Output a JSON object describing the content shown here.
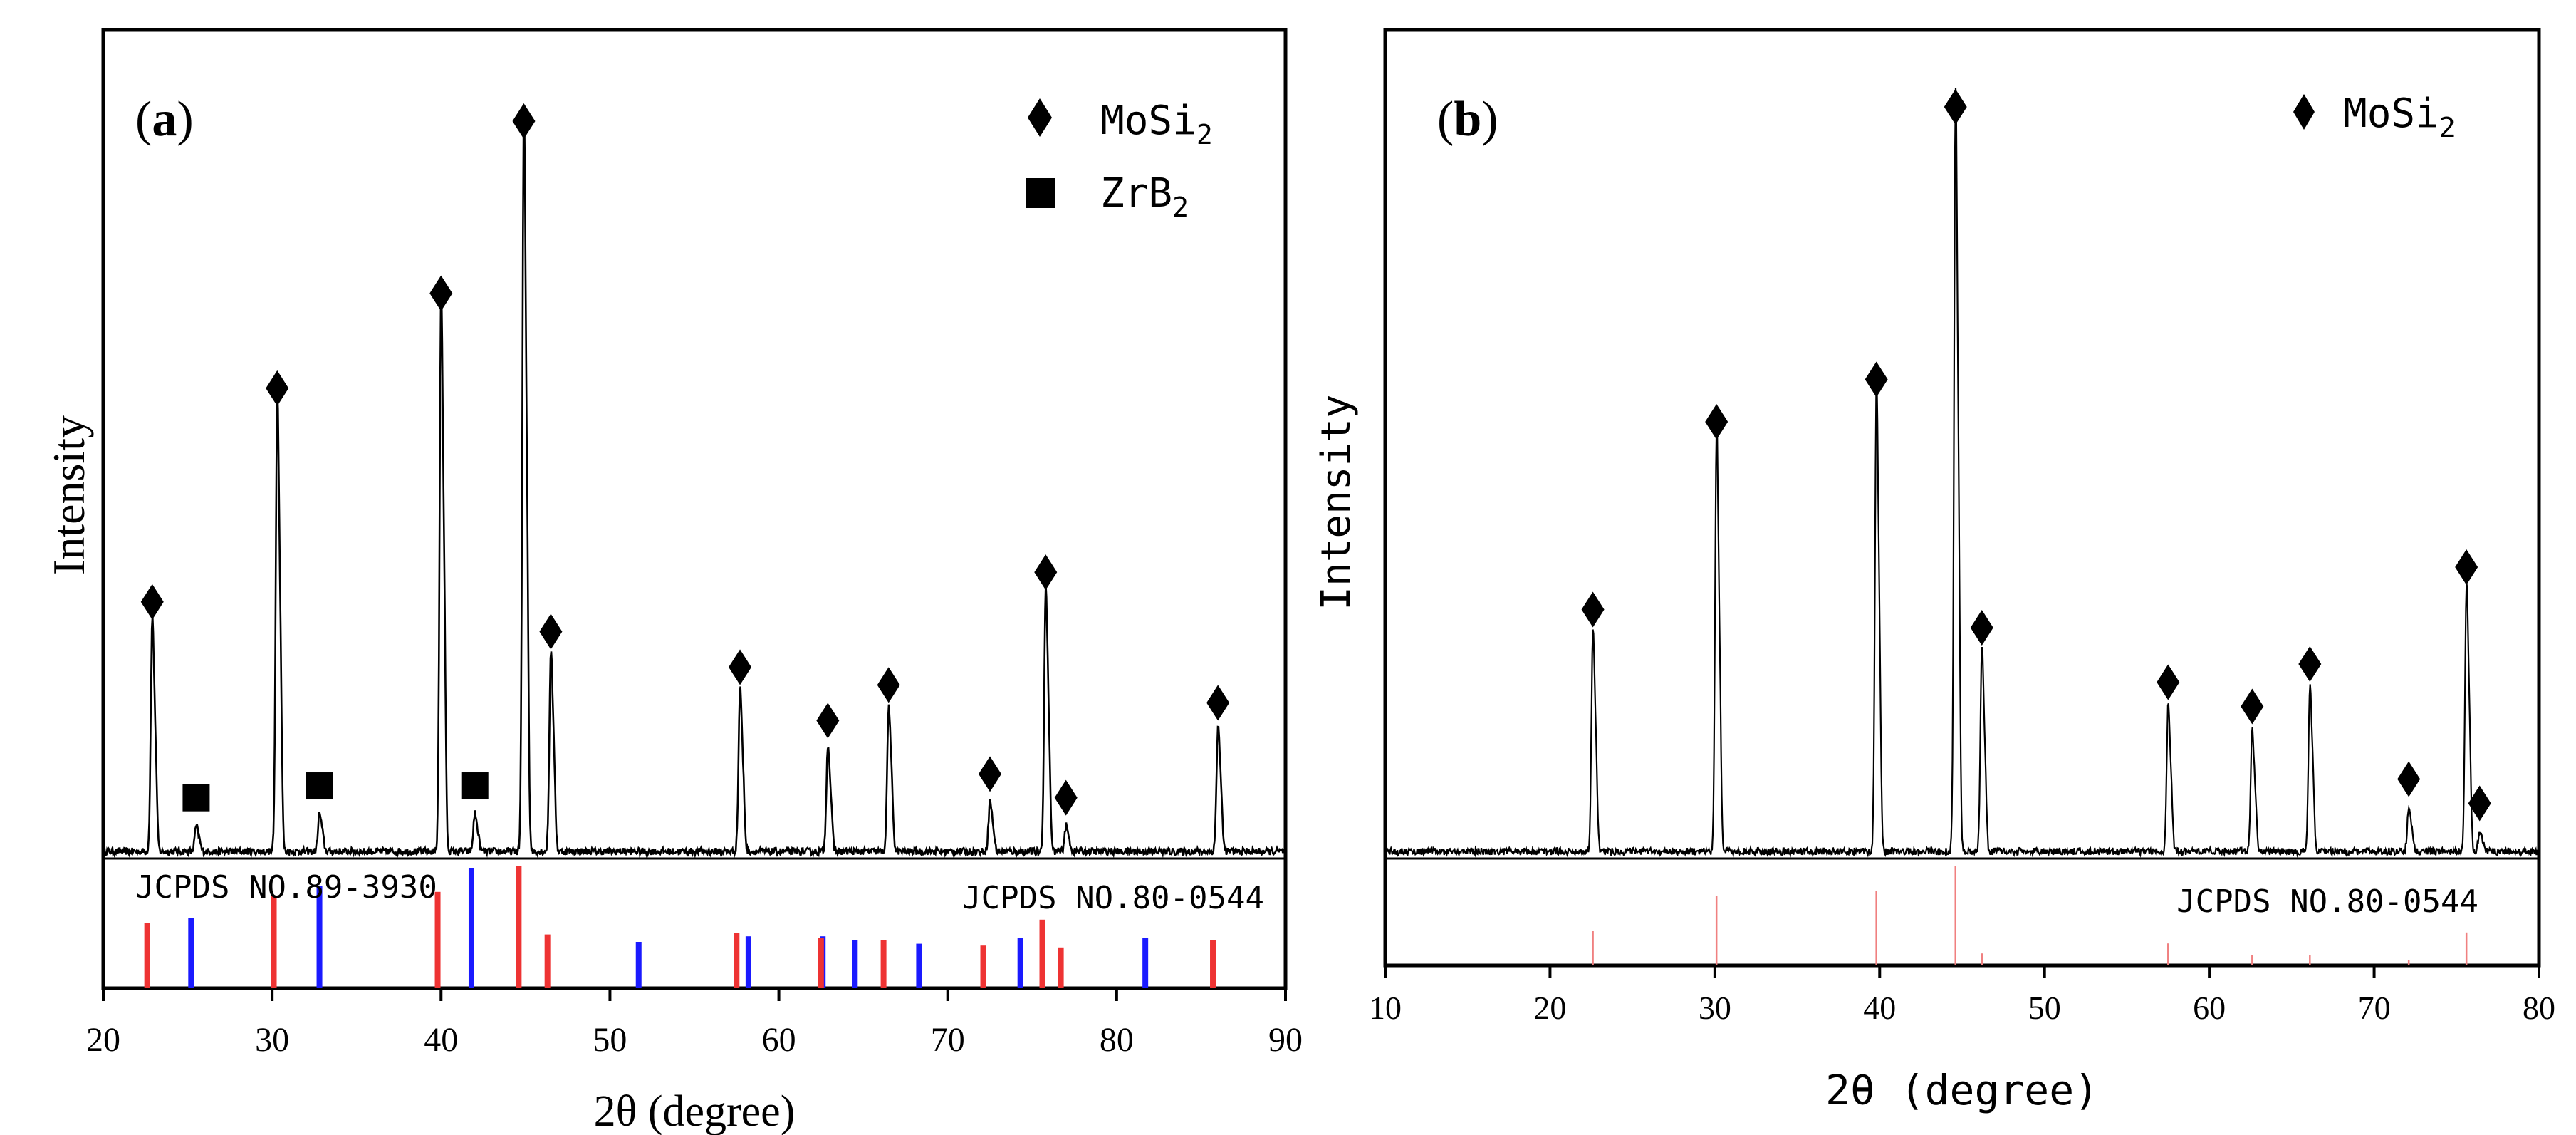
{
  "chart_data": [
    {
      "type": "line",
      "panel_label": "(a)",
      "xlabel": "2θ (degree)",
      "ylabel": "Intensity",
      "xlim": [
        20,
        90
      ],
      "x_ticks": [
        "20",
        "30",
        "40",
        "50",
        "60",
        "70",
        "80",
        "90"
      ],
      "legend": [
        {
          "marker": "diamond",
          "label": "MoSi",
          "sub": "2"
        },
        {
          "marker": "square",
          "label": "ZrB",
          "sub": "2"
        }
      ],
      "pattern_peaks": [
        {
          "x": 22.9,
          "y": 0.37,
          "phase": "MoSi2"
        },
        {
          "x": 25.5,
          "y": 0.04,
          "phase": "ZrB2"
        },
        {
          "x": 30.3,
          "y": 0.73,
          "phase": "MoSi2"
        },
        {
          "x": 32.8,
          "y": 0.06,
          "phase": "ZrB2"
        },
        {
          "x": 40.0,
          "y": 0.89,
          "phase": "MoSi2"
        },
        {
          "x": 42.0,
          "y": 0.06,
          "phase": "ZrB2"
        },
        {
          "x": 44.9,
          "y": 1.18,
          "phase": "MoSi2"
        },
        {
          "x": 46.5,
          "y": 0.32,
          "phase": "MoSi2"
        },
        {
          "x": 57.7,
          "y": 0.26,
          "phase": "MoSi2"
        },
        {
          "x": 62.9,
          "y": 0.17,
          "phase": "MoSi2"
        },
        {
          "x": 66.5,
          "y": 0.23,
          "phase": "MoSi2"
        },
        {
          "x": 72.5,
          "y": 0.08,
          "phase": "MoSi2"
        },
        {
          "x": 75.8,
          "y": 0.42,
          "phase": "MoSi2"
        },
        {
          "x": 77.0,
          "y": 0.04,
          "phase": "MoSi2"
        },
        {
          "x": 86.0,
          "y": 0.2,
          "phase": "MoSi2"
        }
      ],
      "reference_patterns": [
        {
          "label": "JCPDS NO.89-3930",
          "color": "#1a1aff",
          "lines": [
            {
              "x": 25.2,
              "h": 0.38
            },
            {
              "x": 32.8,
              "h": 0.55
            },
            {
              "x": 41.8,
              "h": 0.65
            },
            {
              "x": 51.7,
              "h": 0.25
            },
            {
              "x": 58.2,
              "h": 0.28
            },
            {
              "x": 62.6,
              "h": 0.28
            },
            {
              "x": 64.5,
              "h": 0.26
            },
            {
              "x": 68.3,
              "h": 0.24
            },
            {
              "x": 74.3,
              "h": 0.27
            },
            {
              "x": 81.7,
              "h": 0.27
            }
          ]
        },
        {
          "label": "JCPDS NO.80-0544",
          "color": "#ee3333",
          "lines": [
            {
              "x": 22.6,
              "h": 0.35
            },
            {
              "x": 30.1,
              "h": 0.5
            },
            {
              "x": 39.8,
              "h": 0.52
            },
            {
              "x": 44.6,
              "h": 0.66
            },
            {
              "x": 46.3,
              "h": 0.29
            },
            {
              "x": 57.5,
              "h": 0.3
            },
            {
              "x": 62.5,
              "h": 0.27
            },
            {
              "x": 66.2,
              "h": 0.26
            },
            {
              "x": 72.1,
              "h": 0.23
            },
            {
              "x": 75.6,
              "h": 0.37
            },
            {
              "x": 76.7,
              "h": 0.22
            },
            {
              "x": 85.7,
              "h": 0.26
            }
          ]
        }
      ]
    },
    {
      "type": "line",
      "panel_label": "(b)",
      "xlabel": "2θ (degree)",
      "ylabel": "Intensity",
      "xlim": [
        10,
        80
      ],
      "x_ticks": [
        "10",
        "20",
        "30",
        "40",
        "50",
        "60",
        "70",
        "80"
      ],
      "legend": [
        {
          "marker": "diamond",
          "label": "MoSi",
          "sub": "2"
        }
      ],
      "pattern_peaks": [
        {
          "x": 22.6,
          "y": 0.35,
          "phase": "MoSi2"
        },
        {
          "x": 30.1,
          "y": 0.66,
          "phase": "MoSi2"
        },
        {
          "x": 39.8,
          "y": 0.73,
          "phase": "MoSi2"
        },
        {
          "x": 44.6,
          "y": 1.18,
          "phase": "MoSi2"
        },
        {
          "x": 46.2,
          "y": 0.32,
          "phase": "MoSi2"
        },
        {
          "x": 57.5,
          "y": 0.23,
          "phase": "MoSi2"
        },
        {
          "x": 62.6,
          "y": 0.19,
          "phase": "MoSi2"
        },
        {
          "x": 66.1,
          "y": 0.26,
          "phase": "MoSi2"
        },
        {
          "x": 72.1,
          "y": 0.07,
          "phase": "MoSi2"
        },
        {
          "x": 75.6,
          "y": 0.42,
          "phase": "MoSi2"
        },
        {
          "x": 76.4,
          "y": 0.03,
          "phase": "MoSi2"
        }
      ],
      "reference_patterns": [
        {
          "label": "JCPDS NO.80-0544",
          "color": "#f08080",
          "lines": [
            {
              "x": 22.6,
              "h": 0.35
            },
            {
              "x": 30.1,
              "h": 0.7
            },
            {
              "x": 39.8,
              "h": 0.75
            },
            {
              "x": 44.6,
              "h": 1.0
            },
            {
              "x": 46.2,
              "h": 0.12
            },
            {
              "x": 57.5,
              "h": 0.22
            },
            {
              "x": 62.6,
              "h": 0.1
            },
            {
              "x": 66.1,
              "h": 0.1
            },
            {
              "x": 72.1,
              "h": 0.05
            },
            {
              "x": 75.6,
              "h": 0.33
            }
          ]
        }
      ]
    }
  ]
}
